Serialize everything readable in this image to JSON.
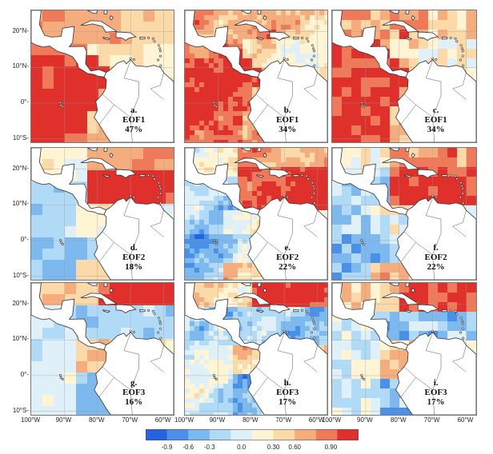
{
  "panels": [
    {
      "id": "a",
      "label": [
        "a.",
        "EOF1",
        "47%"
      ],
      "mode": 1,
      "style": "coarse"
    },
    {
      "id": "b",
      "label": [
        "b.",
        "EOF1",
        "34%"
      ],
      "mode": 1,
      "style": "fine"
    },
    {
      "id": "c",
      "label": [
        "c.",
        "EOF1",
        "34%"
      ],
      "mode": 1,
      "style": "blocky"
    },
    {
      "id": "d",
      "label": [
        "d.",
        "EOF2",
        "18%"
      ],
      "mode": 2,
      "style": "coarse"
    },
    {
      "id": "e",
      "label": [
        "e.",
        "EOF2",
        "22%"
      ],
      "mode": 2,
      "style": "fine"
    },
    {
      "id": "f",
      "label": [
        "f.",
        "EOF2",
        "22%"
      ],
      "mode": 2,
      "style": "blocky"
    },
    {
      "id": "g",
      "label": [
        "g.",
        "EOF3",
        "16%"
      ],
      "mode": 3,
      "style": "coarse"
    },
    {
      "id": "h",
      "label": [
        "h.",
        "EOF3",
        "17%"
      ],
      "mode": 3,
      "style": "fine"
    },
    {
      "id": "i",
      "label": [
        "i.",
        "EOF3",
        "17%"
      ],
      "mode": 3,
      "style": "blocky"
    }
  ],
  "lat_labels": [
    "20°N-",
    "10°N-",
    "0°-",
    "10°S-"
  ],
  "lon_labels": [
    "100°W",
    "90°W",
    "80°W",
    "70°W",
    "60°W"
  ],
  "colorbar": {
    "colors": [
      "#2563e0",
      "#4a8fe8",
      "#7db8ef",
      "#b0daf5",
      "#dff0f8",
      "#fff5d4",
      "#fcd9a8",
      "#f6ad7e",
      "#ef7a59",
      "#e0302c"
    ],
    "ticks": [
      "-0.9",
      "-0.6",
      "-0.3",
      "0.0",
      "0.30",
      "0.60",
      "0.90"
    ]
  }
}
